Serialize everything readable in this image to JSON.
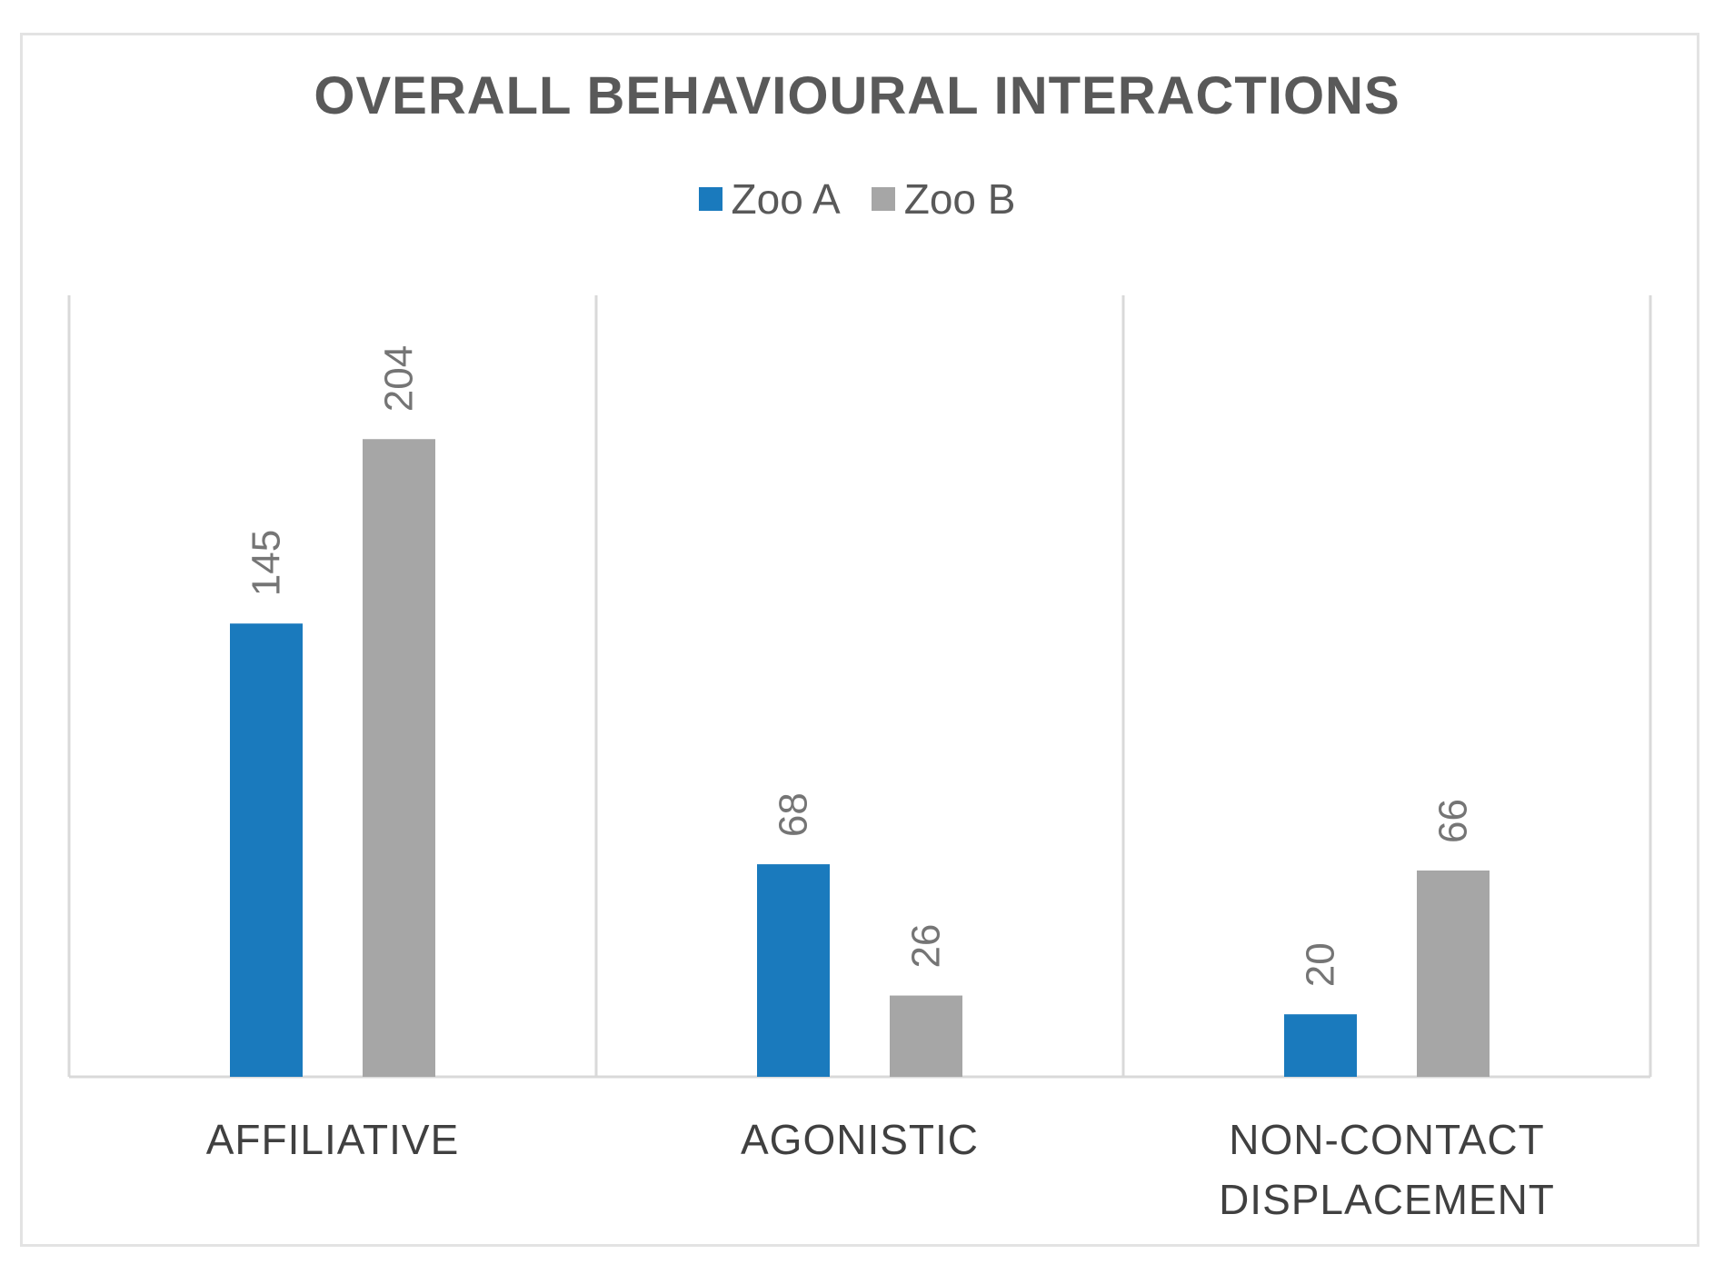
{
  "chart_data": {
    "type": "bar",
    "title": "OVERALL BEHAVIOURAL INTERACTIONS",
    "categories": [
      "AFFILIATIVE",
      "AGONISTIC",
      "NON-CONTACT DISPLACEMENT"
    ],
    "category_lines": [
      [
        "AFFILIATIVE"
      ],
      [
        "AGONISTIC"
      ],
      [
        "NON-CONTACT",
        "DISPLACEMENT"
      ]
    ],
    "series": [
      {
        "name": "Zoo A",
        "color": "#1a7abd",
        "values": [
          145,
          68,
          20
        ]
      },
      {
        "name": "Zoo B",
        "color": "#a6a6a6",
        "values": [
          204,
          26,
          66
        ]
      }
    ],
    "ylim": [
      0,
      250
    ],
    "xlabel": "",
    "ylabel": "",
    "legend_position": "top",
    "grid": false,
    "data_labels": "rotated-vertical"
  }
}
